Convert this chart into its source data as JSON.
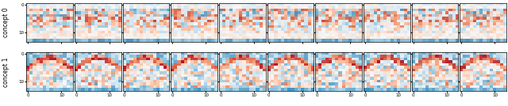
{
  "n_rows": 2,
  "n_cols": 10,
  "row_labels": [
    "concept 0",
    "concept 1"
  ],
  "grid_rows": 14,
  "grid_cols": 14,
  "x_ticks": [
    0,
    10
  ],
  "y_ticks": [
    0,
    10
  ],
  "colormap": "RdBu_r",
  "vmin": -1.5,
  "vmax": 1.5,
  "figsize": [
    6.4,
    1.34
  ],
  "dpi": 100,
  "label_fontsize": 5.5,
  "tick_fontsize": 4.0
}
